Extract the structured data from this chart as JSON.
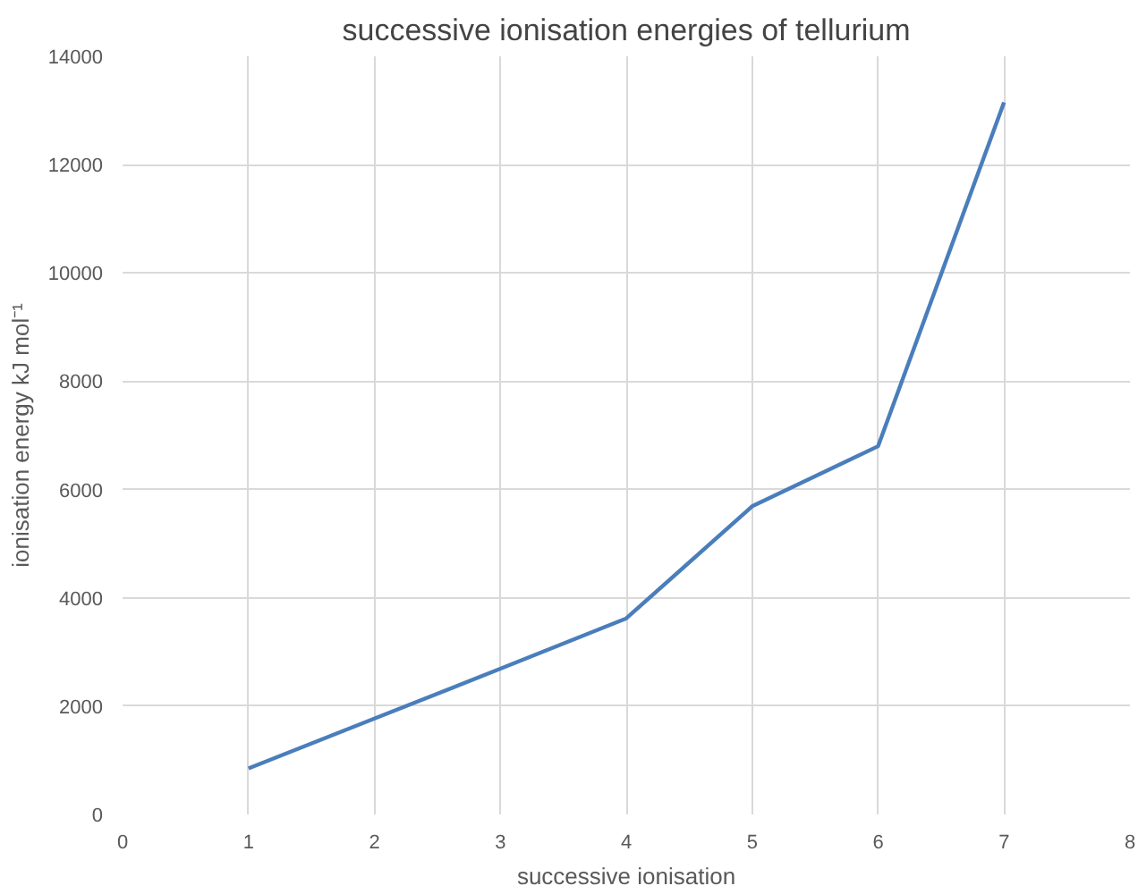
{
  "chart_data": {
    "type": "line",
    "title": "successive ionisation energies of tellurium",
    "xlabel": "successive ionisation",
    "ylabel": "ionisation energy kJ mol⁻¹",
    "x": [
      1,
      2,
      3,
      4,
      5,
      6,
      7
    ],
    "series": [
      {
        "color": "#4a7ebb",
        "values": [
          850,
          1770,
          2690,
          3620,
          5690,
          6800,
          13150
        ]
      }
    ],
    "xlim": [
      0,
      8
    ],
    "xticks": [
      0,
      1,
      2,
      3,
      4,
      5,
      6,
      7,
      8
    ],
    "ylim": [
      0,
      14000
    ],
    "yticks": [
      0,
      2000,
      4000,
      6000,
      8000,
      10000,
      12000,
      14000
    ],
    "grid": true,
    "marker": "none",
    "line_style": "solid"
  }
}
